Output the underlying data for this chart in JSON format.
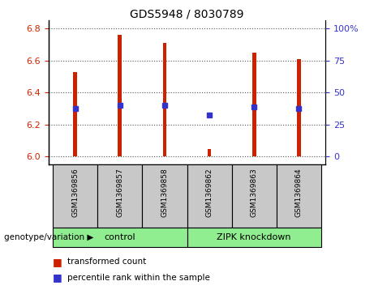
{
  "title": "GDS5948 / 8030789",
  "samples": [
    "GSM1369856",
    "GSM1369857",
    "GSM1369858",
    "GSM1369862",
    "GSM1369863",
    "GSM1369864"
  ],
  "bar_values": [
    6.53,
    6.76,
    6.71,
    6.05,
    6.65,
    6.61
  ],
  "blue_values": [
    6.3,
    6.32,
    6.32,
    6.26,
    6.31,
    6.3
  ],
  "bar_base": 6.0,
  "ylim_left": [
    5.95,
    6.85
  ],
  "yticks_left": [
    6.0,
    6.2,
    6.4,
    6.6,
    6.8
  ],
  "ytick_right_labels": [
    "0",
    "25",
    "50",
    "75",
    "100%"
  ],
  "bar_color": "#CC2200",
  "blue_color": "#3333CC",
  "grid_color": "#555555",
  "left_tick_color": "#CC2200",
  "right_tick_color": "#3333CC",
  "sample_box_color": "#C8C8C8",
  "group_green": "#90EE90",
  "legend_items": [
    {
      "color": "#CC2200",
      "label": "transformed count"
    },
    {
      "color": "#3333CC",
      "label": "percentile rank within the sample"
    }
  ],
  "group_label": "genotype/variation",
  "groups": [
    {
      "label": "control",
      "start": 0,
      "end": 2
    },
    {
      "label": "ZIPK knockdown",
      "start": 3,
      "end": 5
    }
  ]
}
